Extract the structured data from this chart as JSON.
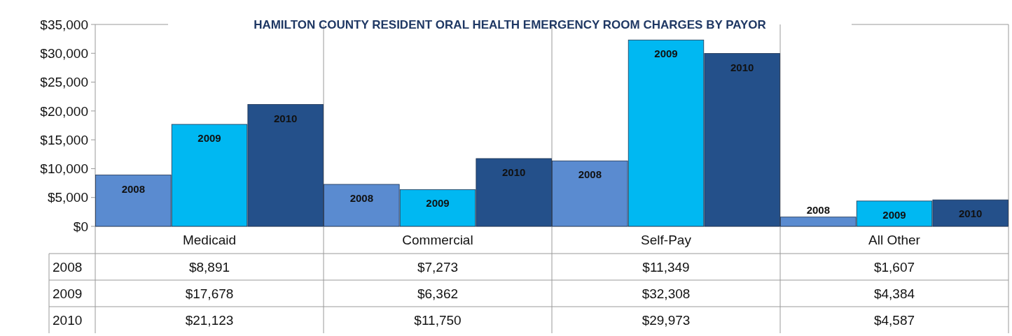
{
  "chart_data": {
    "type": "bar",
    "title": "HAMILTON COUNTY RESIDENT ORAL HEALTH EMERGENCY ROOM CHARGES BY PAYOR",
    "categories": [
      "Medicaid",
      "Commercial",
      "Self-Pay",
      "All Other"
    ],
    "series": [
      {
        "name": "2008",
        "color": "#5a8bd0",
        "values": [
          8891,
          7273,
          11349,
          1607
        ],
        "value_labels": [
          "$8,891",
          "$7,273",
          "$11,349",
          "$1,607"
        ]
      },
      {
        "name": "2009",
        "color": "#00b8f2",
        "values": [
          17678,
          6362,
          32308,
          4384
        ],
        "value_labels": [
          "$17,678",
          "$6,362",
          "$32,308",
          "$4,384"
        ]
      },
      {
        "name": "2010",
        "color": "#24508a",
        "values": [
          21123,
          11750,
          29973,
          4587
        ],
        "value_labels": [
          "$21,123",
          "$11,750",
          "$29,973",
          "$4,587"
        ]
      }
    ],
    "ylim": [
      0,
      35000
    ],
    "yticks": [
      {
        "value": 0,
        "label": "$0"
      },
      {
        "value": 5000,
        "label": "$5,000"
      },
      {
        "value": 10000,
        "label": "$10,000"
      },
      {
        "value": 15000,
        "label": "$15,000"
      },
      {
        "value": 20000,
        "label": "$20,000"
      },
      {
        "value": 25000,
        "label": "$25,000"
      },
      {
        "value": 30000,
        "label": "$30,000"
      },
      {
        "value": 35000,
        "label": "$35,000"
      }
    ]
  }
}
